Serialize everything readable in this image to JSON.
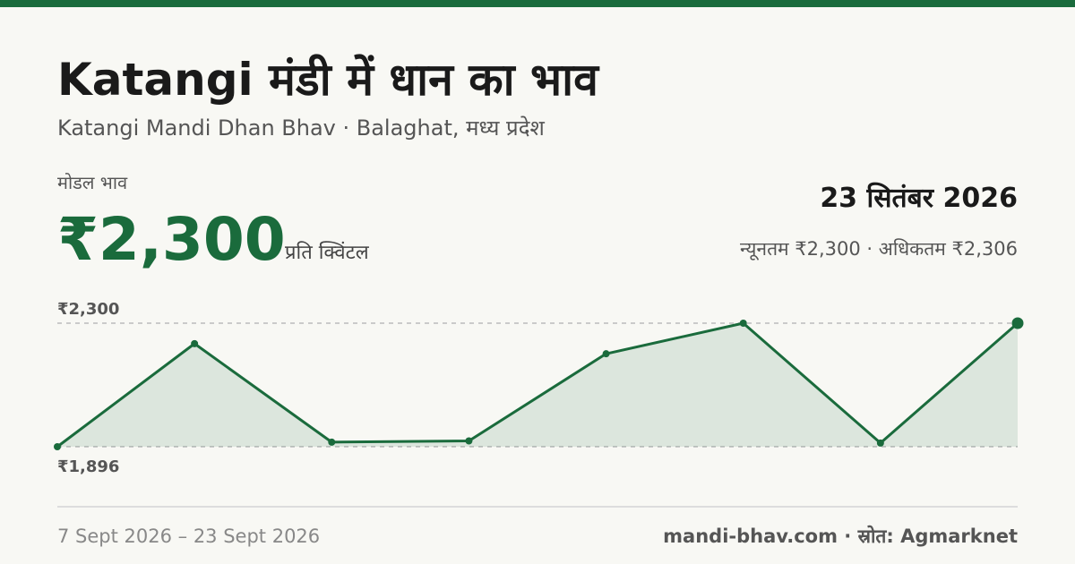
{
  "title": "Katangi मंडी में धान का भाव",
  "subtitle": "Katangi Mandi Dhan Bhav · Balaghat, मध्य प्रदेश",
  "modal_label": "मोडल भाव",
  "modal_price": "₹2,300",
  "unit": "प्रति क्विंटल",
  "date": "23 सितंबर 2026",
  "min_max": "न्यूनतम ₹2,300 · अधिकतम ₹2,306",
  "date_range": "7 Sept 2026 – 23 Sept 2026",
  "source": "mandi-bhav.com · स्रोत: Agmarknet",
  "chart_data": {
    "type": "line",
    "color": "#1a6b3c",
    "values": [
      1896,
      2233,
      1911,
      1915,
      2200,
      2300,
      1908,
      2300
    ],
    "ylim": [
      1896,
      2300
    ],
    "yticks": [
      {
        "value": 1896,
        "label": "₹1,896"
      },
      {
        "value": 2300,
        "label": "₹2,300"
      }
    ],
    "grid": true
  }
}
